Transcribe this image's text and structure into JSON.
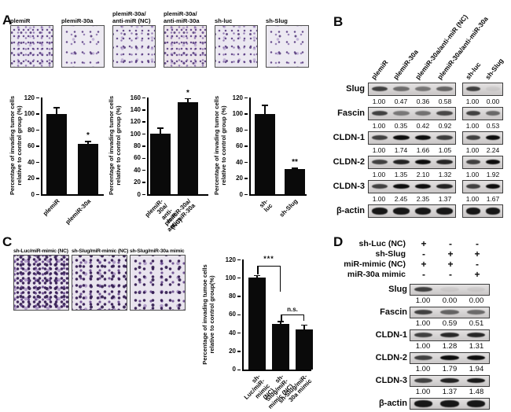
{
  "panels": {
    "A": {
      "letter": "A",
      "images": [
        "plemiR",
        "plemiR-30a",
        "plemiR-30a/\nanti-miR (NC)",
        "plemiR-30a/\nanti-miR-30a",
        "sh-luc",
        "sh-Slug"
      ]
    },
    "B": {
      "letter": "B",
      "lanes": [
        "plemiR",
        "plemiR-30a",
        "plemiR-30a/anti-miR (NC)",
        "plemiR-30a/anti-miR-30a",
        "sh-luc",
        "sh-Slug"
      ],
      "rows": [
        {
          "protein": "Slug",
          "g1": [
            "1.00",
            "0.47",
            "0.36",
            "0.58"
          ],
          "g2": [
            "1.00",
            "0.00"
          ]
        },
        {
          "protein": "Fascin",
          "g1": [
            "1.00",
            "0.35",
            "0.42",
            "0.92"
          ],
          "g2": [
            "1.00",
            "0.53"
          ]
        },
        {
          "protein": "CLDN-1",
          "g1": [
            "1.00",
            "1.74",
            "1.66",
            "1.05"
          ],
          "g2": [
            "1.00",
            "2.24"
          ]
        },
        {
          "protein": "CLDN-2",
          "g1": [
            "1.00",
            "1.35",
            "2.10",
            "1.32"
          ],
          "g2": [
            "1.00",
            "1.92"
          ]
        },
        {
          "protein": "CLDN-3",
          "g1": [
            "1.00",
            "2.45",
            "2.35",
            "1.37"
          ],
          "g2": [
            "1.00",
            "1.67"
          ]
        },
        {
          "protein": "β-actin",
          "g1": [],
          "g2": []
        }
      ]
    },
    "C": {
      "letter": "C",
      "images": [
        "sh-Luc/miR-mimic (NC)",
        "sh-Slug/miR-mimic (NC)",
        "sh-Slug/miR-30a mimic"
      ]
    },
    "D": {
      "letter": "D",
      "conditions": [
        {
          "label": "sh-Luc (NC)",
          "vals": [
            "+",
            "-",
            "-"
          ]
        },
        {
          "label": "sh-Slug",
          "vals": [
            "-",
            "+",
            "+"
          ]
        },
        {
          "label": "miR-mimic (NC)",
          "vals": [
            "+",
            "+",
            "-"
          ]
        },
        {
          "label": "miR-30a mimic",
          "vals": [
            "-",
            "-",
            "+"
          ]
        }
      ],
      "rows": [
        {
          "protein": "Slug",
          "vals": [
            "1.00",
            "0.00",
            "0.00"
          ]
        },
        {
          "protein": "Fascin",
          "vals": [
            "1.00",
            "0.59",
            "0.51"
          ]
        },
        {
          "protein": "CLDN-1",
          "vals": [
            "1.00",
            "1.28",
            "1.31"
          ]
        },
        {
          "protein": "CLDN-2",
          "vals": [
            "1.00",
            "1.79",
            "1.94"
          ]
        },
        {
          "protein": "CLDN-3",
          "vals": [
            "1.00",
            "1.37",
            "1.48"
          ]
        },
        {
          "protein": "β-actin",
          "vals": []
        }
      ]
    }
  },
  "chart_data": [
    {
      "id": "panelA-left",
      "type": "bar",
      "categories": [
        "plemiR",
        "plemiR-30a"
      ],
      "values": [
        100,
        62
      ],
      "errors": [
        8,
        4
      ],
      "sig_labels": [
        "",
        "*"
      ],
      "title": "",
      "xlabel": "",
      "ylabel": "Percentage of invading tumor cells\nrelative to control group (%)",
      "ylim": [
        0,
        120
      ],
      "yticks": [
        0,
        20,
        40,
        60,
        80,
        100,
        120
      ]
    },
    {
      "id": "panelA-middle",
      "type": "bar",
      "categories": [
        "plemiR-30a/\nanti-miR (NC)",
        "plemiR-30a/\nanti-miR-30a"
      ],
      "values": [
        100,
        152
      ],
      "errors": [
        10,
        7
      ],
      "sig_labels": [
        "",
        "*"
      ],
      "title": "",
      "xlabel": "",
      "ylabel": "Percentage of invading tumor cells\nrelative to control group (%)",
      "ylim": [
        0,
        160
      ],
      "yticks": [
        0,
        20,
        40,
        60,
        80,
        100,
        120,
        140,
        160
      ]
    },
    {
      "id": "panelA-right",
      "type": "bar",
      "categories": [
        "sh-luc",
        "sh-Slug"
      ],
      "values": [
        100,
        31
      ],
      "errors": [
        11,
        2
      ],
      "sig_labels": [
        "",
        "**"
      ],
      "title": "",
      "xlabel": "",
      "ylabel": "Percentage of invading tumor cells\nrelative to control group (%)",
      "ylim": [
        0,
        120
      ],
      "yticks": [
        0,
        20,
        40,
        60,
        80,
        100,
        120
      ]
    },
    {
      "id": "panelC",
      "type": "bar",
      "categories": [
        "sh-Luc/miR-\nmimic (NC)",
        "sh-Slug/miR-\nmimic (NC)",
        "sh-Slug/miR-\n30a mimic"
      ],
      "values": [
        100,
        50,
        44
      ],
      "errors": [
        3,
        3,
        5
      ],
      "comparisons": [
        {
          "label": "***",
          "between": [
            0,
            1
          ]
        },
        {
          "label": "n.s.",
          "between": [
            1,
            2
          ]
        }
      ],
      "title": "",
      "xlabel": "",
      "ylabel": "Percentage of invading tumoe cells\nrelative to control group(%)",
      "ylim": [
        0,
        120
      ],
      "yticks": [
        0,
        20,
        40,
        60,
        80,
        100,
        120
      ]
    }
  ]
}
